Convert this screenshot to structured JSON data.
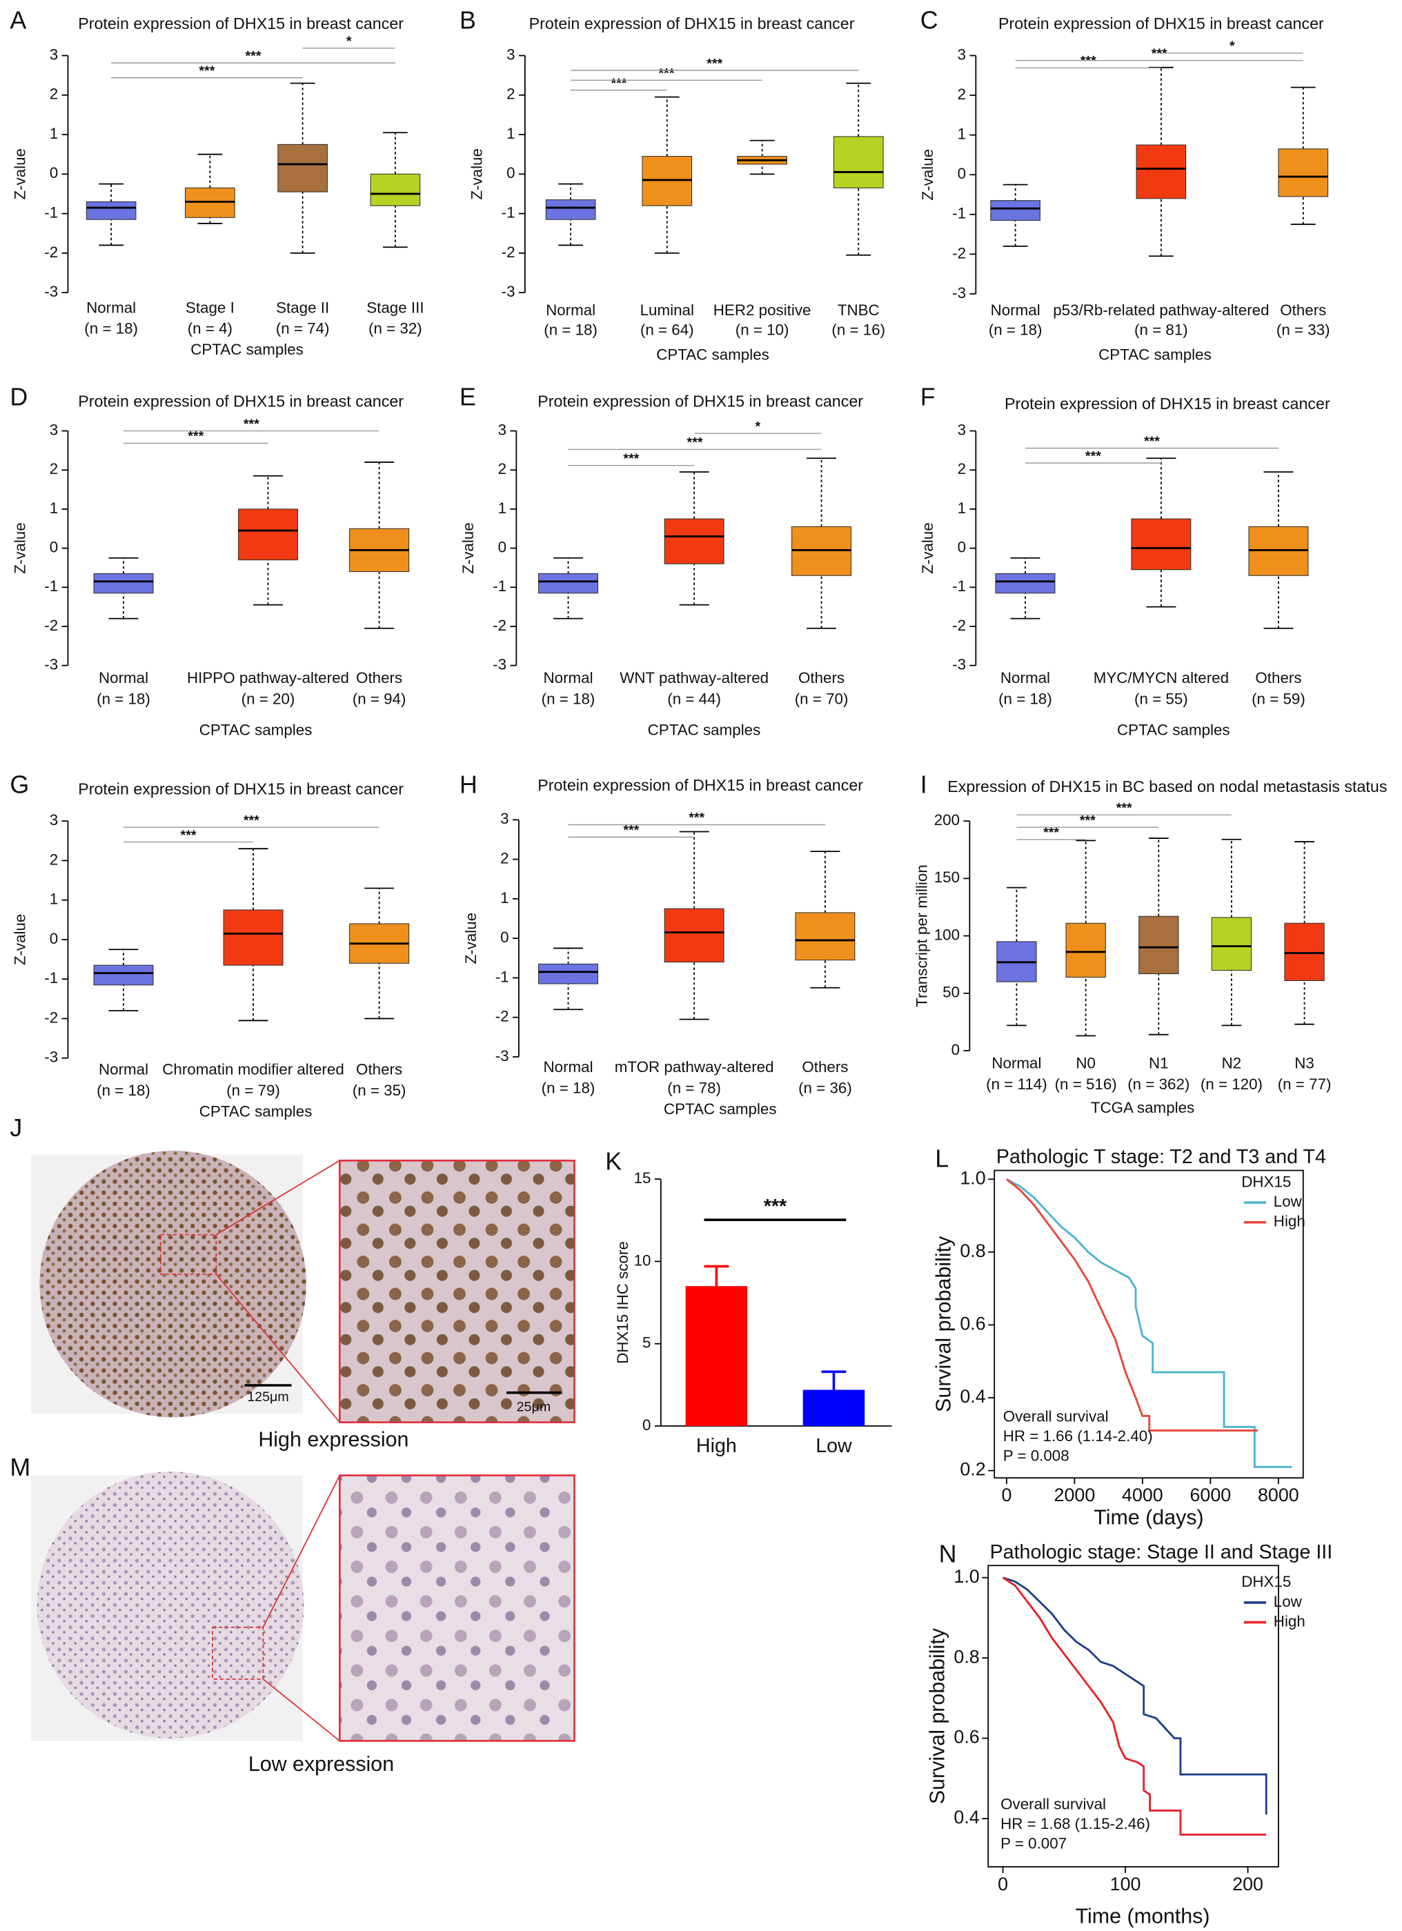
{
  "chart_data": [
    {
      "type": "box",
      "panel": "A",
      "title": "Protein expression of DHX15 in breast cancer",
      "xlabel": "CPTAC samples",
      "ylabel": "Z-value",
      "categories": [
        "Normal",
        "Stage I",
        "Stage II",
        "Stage III"
      ],
      "n_labels": [
        "(n = 18)",
        "(n = 4)",
        "(n = 74)",
        "(n = 32)"
      ],
      "colors": [
        "#6b74e0",
        "#f0901c",
        "#a8703e",
        "#b5d322"
      ],
      "boxes": [
        {
          "min": -1.8,
          "q1": -1.15,
          "median": -0.85,
          "q3": -0.7,
          "max": -0.25
        },
        {
          "min": -1.25,
          "q1": -1.1,
          "median": -0.7,
          "q3": -0.35,
          "max": 0.5
        },
        {
          "min": -2.0,
          "q1": -0.45,
          "median": 0.25,
          "q3": 0.75,
          "max": 2.3
        },
        {
          "min": -1.85,
          "q1": -0.8,
          "median": -0.5,
          "q3": 0,
          "max": 1.05
        }
      ],
      "ylim": [
        -3,
        3
      ],
      "yticks": [
        -3,
        -2,
        -1,
        0,
        1,
        2,
        3
      ],
      "significance": [
        {
          "groups": [
            0,
            2
          ],
          "label": "***"
        },
        {
          "groups": [
            0,
            3
          ],
          "label": "***"
        },
        {
          "groups": [
            2,
            3
          ],
          "label": "*"
        }
      ]
    },
    {
      "type": "box",
      "panel": "B",
      "title": "Protein expression of DHX15 in breast cancer",
      "xlabel": "CPTAC samples",
      "ylabel": "Z-value",
      "categories": [
        "Normal",
        "Luminal",
        "HER2 positive",
        "TNBC"
      ],
      "n_labels": [
        "(n = 18)",
        "(n = 64)",
        "(n = 10)",
        "(n = 16)"
      ],
      "colors": [
        "#6b74e0",
        "#f0901c",
        "#f0901c",
        "#b5d322"
      ],
      "boxes": [
        {
          "min": -1.8,
          "q1": -1.15,
          "median": -0.85,
          "q3": -0.65,
          "max": -0.25
        },
        {
          "min": -2.0,
          "q1": -0.8,
          "median": -0.15,
          "q3": 0.45,
          "max": 1.95
        },
        {
          "min": 0,
          "q1": 0.25,
          "median": 0.35,
          "q3": 0.45,
          "max": 0.85
        },
        {
          "min": -2.05,
          "q1": -0.35,
          "median": 0.05,
          "q3": 0.95,
          "max": 2.3
        }
      ],
      "ylim": [
        -3,
        3
      ],
      "yticks": [
        -3,
        -2,
        -1,
        0,
        1,
        2,
        3
      ],
      "significance": [
        {
          "groups": [
            0,
            1
          ],
          "label": "***"
        },
        {
          "groups": [
            0,
            2
          ],
          "label": "***"
        },
        {
          "groups": [
            0,
            3
          ],
          "label": "***"
        }
      ]
    },
    {
      "type": "box",
      "panel": "C",
      "title": "Protein expression of DHX15 in breast cancer",
      "xlabel": "CPTAC samples",
      "ylabel": "Z-value",
      "categories": [
        "Normal",
        "p53/Rb-related pathway-altered",
        "Others"
      ],
      "n_labels": [
        "(n = 18)",
        "(n = 81)",
        "(n = 33)"
      ],
      "colors": [
        "#6b74e0",
        "#f23a12",
        "#f0901c"
      ],
      "boxes": [
        {
          "min": -1.8,
          "q1": -1.15,
          "median": -0.85,
          "q3": -0.65,
          "max": -0.25
        },
        {
          "min": -2.05,
          "q1": -0.6,
          "median": 0.15,
          "q3": 0.75,
          "max": 2.7
        },
        {
          "min": -1.25,
          "q1": -0.55,
          "median": -0.05,
          "q3": 0.65,
          "max": 2.2
        }
      ],
      "ylim": [
        -3,
        3
      ],
      "yticks": [
        -3,
        -2,
        -1,
        0,
        1,
        2,
        3
      ],
      "significance": [
        {
          "groups": [
            0,
            1
          ],
          "label": "***"
        },
        {
          "groups": [
            0,
            2
          ],
          "label": "***"
        },
        {
          "groups": [
            1,
            2
          ],
          "label": "*"
        }
      ]
    },
    {
      "type": "box",
      "panel": "D",
      "title": "Protein expression of DHX15 in breast cancer",
      "xlabel": "CPTAC samples",
      "ylabel": "Z-value",
      "categories": [
        "Normal",
        "HIPPO pathway-altered",
        "Others"
      ],
      "n_labels": [
        "(n = 18)",
        "(n = 20)",
        "(n = 94)"
      ],
      "colors": [
        "#6b74e0",
        "#f23a12",
        "#f0901c"
      ],
      "boxes": [
        {
          "min": -1.8,
          "q1": -1.15,
          "median": -0.85,
          "q3": -0.65,
          "max": -0.25
        },
        {
          "min": -1.45,
          "q1": -0.3,
          "median": 0.45,
          "q3": 1.0,
          "max": 1.85
        },
        {
          "min": -2.05,
          "q1": -0.6,
          "median": -0.05,
          "q3": 0.5,
          "max": 2.2
        }
      ],
      "ylim": [
        -3,
        3
      ],
      "yticks": [
        -3,
        -2,
        -1,
        0,
        1,
        2,
        3
      ],
      "significance": [
        {
          "groups": [
            0,
            1
          ],
          "label": "***"
        },
        {
          "groups": [
            0,
            2
          ],
          "label": "***"
        }
      ]
    },
    {
      "type": "box",
      "panel": "E",
      "title": "Protein expression of DHX15 in breast cancer",
      "xlabel": "CPTAC samples",
      "ylabel": "Z-value",
      "categories": [
        "Normal",
        "WNT pathway-altered",
        "Others"
      ],
      "n_labels": [
        "(n = 18)",
        "(n = 44)",
        "(n = 70)"
      ],
      "colors": [
        "#6b74e0",
        "#f23a12",
        "#f0901c"
      ],
      "boxes": [
        {
          "min": -1.8,
          "q1": -1.15,
          "median": -0.85,
          "q3": -0.65,
          "max": -0.25
        },
        {
          "min": -1.45,
          "q1": -0.4,
          "median": 0.3,
          "q3": 0.75,
          "max": 1.95
        },
        {
          "min": -2.05,
          "q1": -0.7,
          "median": -0.05,
          "q3": 0.55,
          "max": 2.3
        }
      ],
      "ylim": [
        -3,
        3
      ],
      "yticks": [
        -3,
        -2,
        -1,
        0,
        1,
        2,
        3
      ],
      "significance": [
        {
          "groups": [
            0,
            1
          ],
          "label": "***"
        },
        {
          "groups": [
            0,
            2
          ],
          "label": "***"
        },
        {
          "groups": [
            1,
            2
          ],
          "label": "*"
        }
      ]
    },
    {
      "type": "box",
      "panel": "F",
      "title": "Protein expression of DHX15 in breast cancer",
      "xlabel": "CPTAC samples",
      "ylabel": "Z-value",
      "categories": [
        "Normal",
        "MYC/MYCN altered",
        "Others"
      ],
      "n_labels": [
        "(n = 18)",
        "(n = 55)",
        "(n = 59)"
      ],
      "colors": [
        "#6b74e0",
        "#f23a12",
        "#f0901c"
      ],
      "boxes": [
        {
          "min": -1.8,
          "q1": -1.15,
          "median": -0.85,
          "q3": -0.65,
          "max": -0.25
        },
        {
          "min": -1.5,
          "q1": -0.55,
          "median": 0,
          "q3": 0.75,
          "max": 2.3
        },
        {
          "min": -2.05,
          "q1": -0.7,
          "median": -0.05,
          "q3": 0.55,
          "max": 1.95
        }
      ],
      "ylim": [
        -3,
        3
      ],
      "yticks": [
        -3,
        -2,
        -1,
        0,
        1,
        2,
        3
      ],
      "significance": [
        {
          "groups": [
            0,
            1
          ],
          "label": "***"
        },
        {
          "groups": [
            0,
            2
          ],
          "label": "***"
        }
      ]
    },
    {
      "type": "box",
      "panel": "G",
      "title": "Protein expression of DHX15 in breast cancer",
      "xlabel": "CPTAC samples",
      "ylabel": "Z-value",
      "categories": [
        "Normal",
        "Chromatin modifier altered",
        "Others"
      ],
      "n_labels": [
        "(n = 18)",
        "(n = 79)",
        "(n = 35)"
      ],
      "colors": [
        "#6b74e0",
        "#f23a12",
        "#f0901c"
      ],
      "boxes": [
        {
          "min": -1.8,
          "q1": -1.15,
          "median": -0.85,
          "q3": -0.65,
          "max": -0.25
        },
        {
          "min": -2.05,
          "q1": -0.65,
          "median": 0.15,
          "q3": 0.75,
          "max": 2.3
        },
        {
          "min": -2.0,
          "q1": -0.6,
          "median": -0.1,
          "q3": 0.4,
          "max": 1.3
        }
      ],
      "ylim": [
        -3,
        3
      ],
      "yticks": [
        -3,
        -2,
        -1,
        0,
        1,
        2,
        3
      ],
      "significance": [
        {
          "groups": [
            0,
            1
          ],
          "label": "***"
        },
        {
          "groups": [
            0,
            2
          ],
          "label": "***"
        }
      ]
    },
    {
      "type": "box",
      "panel": "H",
      "title": "Protein expression of DHX15 in breast cancer",
      "xlabel": "CPTAC samples",
      "ylabel": "Z-value",
      "categories": [
        "Normal",
        "mTOR pathway-altered",
        "Others"
      ],
      "n_labels": [
        "(n = 18)",
        "(n = 78)",
        "(n = 36)"
      ],
      "colors": [
        "#6b74e0",
        "#f23a12",
        "#f0901c"
      ],
      "boxes": [
        {
          "min": -1.8,
          "q1": -1.15,
          "median": -0.85,
          "q3": -0.65,
          "max": -0.25
        },
        {
          "min": -2.05,
          "q1": -0.6,
          "median": 0.15,
          "q3": 0.75,
          "max": 2.7
        },
        {
          "min": -1.25,
          "q1": -0.55,
          "median": -0.05,
          "q3": 0.65,
          "max": 2.2
        }
      ],
      "ylim": [
        -3,
        3
      ],
      "yticks": [
        -3,
        -2,
        -1,
        0,
        1,
        2,
        3
      ],
      "significance": [
        {
          "groups": [
            0,
            1
          ],
          "label": "***"
        },
        {
          "groups": [
            0,
            2
          ],
          "label": "***"
        }
      ]
    },
    {
      "type": "box",
      "panel": "I",
      "title": "Expression of DHX15 in BC based on nodal metastasis status",
      "xlabel": "TCGA samples",
      "ylabel": "Transcript per million",
      "categories": [
        "Normal",
        "N0",
        "N1",
        "N2",
        "N3"
      ],
      "n_labels": [
        "(n = 114)",
        "(n = 516)",
        "(n = 362)",
        "(n = 120)",
        "(n = 77)"
      ],
      "colors": [
        "#6b74e0",
        "#f0901c",
        "#a8703e",
        "#b5d322",
        "#f23a12"
      ],
      "boxes": [
        {
          "min": 22,
          "q1": 60,
          "median": 77,
          "q3": 95,
          "max": 142
        },
        {
          "min": 13,
          "q1": 64,
          "median": 86,
          "q3": 111,
          "max": 183
        },
        {
          "min": 14,
          "q1": 67,
          "median": 90,
          "q3": 117,
          "max": 185
        },
        {
          "min": 22,
          "q1": 70,
          "median": 91,
          "q3": 116,
          "max": 184
        },
        {
          "min": 23,
          "q1": 61,
          "median": 85,
          "q3": 111,
          "max": 182
        }
      ],
      "ylim": [
        0,
        200
      ],
      "yticks": [
        0,
        50,
        100,
        150,
        200
      ],
      "significance": [
        {
          "groups": [
            0,
            1
          ],
          "label": "***"
        },
        {
          "groups": [
            0,
            2
          ],
          "label": "***"
        },
        {
          "groups": [
            0,
            3
          ],
          "label": "***"
        }
      ]
    },
    {
      "type": "bar",
      "panel": "K",
      "ylabel": "DHX15 IHC score",
      "categories": [
        "High",
        "Low"
      ],
      "values": [
        8.5,
        2.2
      ],
      "errors": [
        1.2,
        1.1
      ],
      "colors": [
        "#ff0000",
        "#0000ff"
      ],
      "ylim": [
        0,
        15
      ],
      "yticks": [
        0,
        5,
        10,
        15
      ],
      "significance": [
        {
          "groups": [
            0,
            1
          ],
          "label": "***"
        }
      ]
    },
    {
      "type": "km",
      "panel": "L",
      "title": "Pathologic T stage: T2 and T3 and T4",
      "xlabel": "Time (days)",
      "ylabel": "Survival probability",
      "legend_title": "DHX15",
      "series": [
        {
          "name": "Low",
          "color": "#4bb3cf",
          "x": [
            0,
            400,
            800,
            1200,
            1600,
            2000,
            2400,
            2800,
            3200,
            3600,
            3800,
            3800,
            4000,
            4300,
            4300,
            5000,
            6000,
            6400,
            6400,
            7300,
            7300,
            8400
          ],
          "values": [
            1,
            0.98,
            0.95,
            0.91,
            0.87,
            0.84,
            0.8,
            0.77,
            0.75,
            0.73,
            0.7,
            0.65,
            0.57,
            0.55,
            0.47,
            0.47,
            0.47,
            0.47,
            0.32,
            0.32,
            0.21,
            0.21
          ]
        },
        {
          "name": "High",
          "color": "#e8453c",
          "x": [
            0,
            400,
            800,
            1200,
            1600,
            2000,
            2400,
            2800,
            3200,
            3500,
            3800,
            4000,
            4200,
            4200,
            6000,
            7400
          ],
          "values": [
            1,
            0.97,
            0.93,
            0.88,
            0.83,
            0.78,
            0.72,
            0.64,
            0.56,
            0.47,
            0.4,
            0.35,
            0.35,
            0.31,
            0.31,
            0.31
          ]
        }
      ],
      "xlim": [
        -360,
        8730
      ],
      "xticks": [
        0,
        2000,
        4000,
        6000,
        8000
      ],
      "ylim": [
        0.18,
        1.024
      ],
      "yticks": [
        {
          "value": 0.2,
          "label": "0.2"
        },
        {
          "value": 0.4,
          "label": "0.4"
        },
        {
          "value": 0.6,
          "label": "0.6"
        },
        {
          "value": 0.8,
          "label": "0.8"
        },
        {
          "value": 1,
          "label": "1.0"
        }
      ],
      "annotations": [
        "Overall survival",
        "HR = 1.66 (1.14-2.40)",
        "P = 0.008"
      ]
    },
    {
      "type": "km",
      "panel": "N",
      "title": "Pathologic stage: Stage II and Stage III",
      "xlabel": "Time (months)",
      "ylabel": "Survival probability",
      "legend_title": "DHX15",
      "series": [
        {
          "name": "Low",
          "color": "#1d3d8c",
          "x": [
            0,
            10,
            20,
            30,
            40,
            50,
            60,
            70,
            80,
            90,
            100,
            110,
            115,
            115,
            125,
            140,
            145,
            145,
            205,
            215,
            215
          ],
          "values": [
            1,
            0.99,
            0.97,
            0.94,
            0.91,
            0.87,
            0.84,
            0.82,
            0.79,
            0.78,
            0.76,
            0.74,
            0.73,
            0.66,
            0.65,
            0.6,
            0.6,
            0.51,
            0.51,
            0.51,
            0.41
          ]
        },
        {
          "name": "High",
          "color": "#e8202a",
          "x": [
            0,
            10,
            20,
            30,
            40,
            50,
            60,
            70,
            80,
            90,
            95,
            100,
            110,
            115,
            115,
            120,
            120,
            145,
            145,
            215
          ],
          "values": [
            1,
            0.98,
            0.94,
            0.9,
            0.85,
            0.81,
            0.77,
            0.73,
            0.69,
            0.64,
            0.58,
            0.55,
            0.54,
            0.53,
            0.47,
            0.46,
            0.42,
            0.42,
            0.36,
            0.36
          ]
        }
      ],
      "xlim": [
        -12,
        225
      ],
      "xticks": [
        0,
        100,
        200
      ],
      "ylim": [
        0.28,
        1.03
      ],
      "yticks": [
        {
          "value": 0.4,
          "label": "0.4"
        },
        {
          "value": 0.6,
          "label": "0.6"
        },
        {
          "value": 0.8,
          "label": "0.8"
        },
        {
          "value": 1,
          "label": "1.0"
        }
      ],
      "annotations": [
        "Overall survival",
        "HR = 1.68 (1.15-2.46)",
        "P = 0.007"
      ]
    }
  ],
  "images": [
    {
      "panel": "J",
      "scale_bars": [
        "125μm",
        "25μm"
      ],
      "caption": "High expression"
    },
    {
      "panel": "M",
      "caption": "Low expression"
    }
  ]
}
